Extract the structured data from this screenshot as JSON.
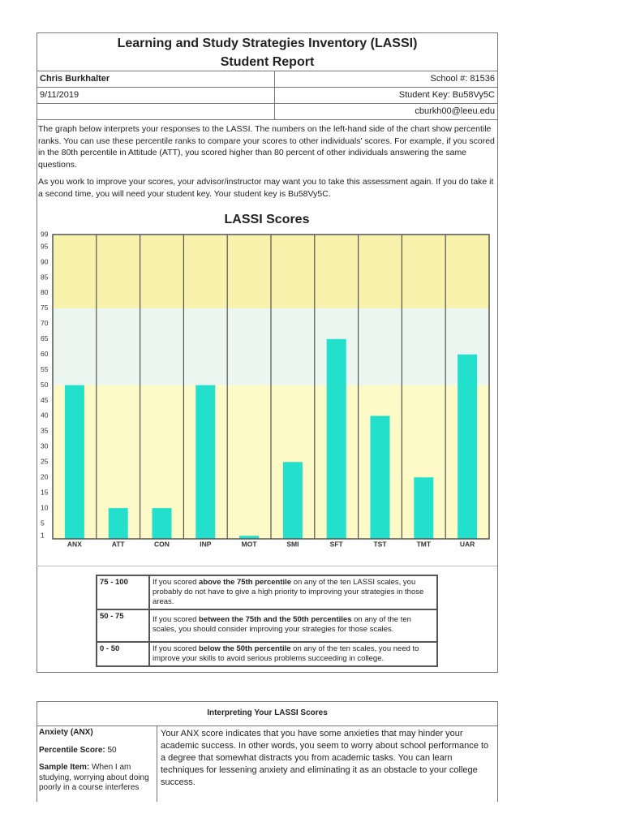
{
  "header": {
    "title": "Learning and Study Strategies Inventory (LASSI)",
    "subtitle": "Student Report"
  },
  "info": {
    "name": "Chris Burkhalter",
    "school": "School #: 81536",
    "date": "9/11/2019",
    "student_key": "Student Key: Bu58Vy5C",
    "email": "cburkh00@leeu.edu"
  },
  "paragraphs": [
    "The graph below interprets your responses to the LASSI. The numbers on the left-hand side of the chart show percentile ranks. You can use these percentile ranks to compare your scores to other individuals' scores. For example, if you scored in the 80th percentile in Attitude (ATT), you scored higher than 80 percent of other individuals answering the same questions.",
    "As you work to improve your scores, your advisor/instructor may want you to take this assessment again. If you do take it a second time, you will need your student key. Your student key is Bu58Vy5C."
  ],
  "chart_data": {
    "type": "bar",
    "title": "LASSI Scores",
    "categories": [
      "ANX",
      "ATT",
      "CON",
      "INP",
      "MOT",
      "SMI",
      "SFT",
      "TST",
      "TMT",
      "UAR"
    ],
    "values": [
      50,
      10,
      10,
      50,
      1,
      25,
      65,
      40,
      20,
      60
    ],
    "color": "#22e0cc",
    "ylim": [
      0,
      99
    ],
    "yticks": [
      1,
      5,
      10,
      15,
      20,
      25,
      30,
      35,
      40,
      45,
      50,
      55,
      60,
      65,
      70,
      75,
      80,
      85,
      90,
      95,
      99
    ],
    "bands": [
      {
        "from": 0,
        "to": 50,
        "color": "#fefac8"
      },
      {
        "from": 50,
        "to": 75,
        "color": "#eaf6ef"
      },
      {
        "from": 75,
        "to": 99,
        "color": "#f8f2ac"
      }
    ]
  },
  "legend_table": {
    "rows": [
      {
        "range": "75 - 100",
        "text": [
          "If you scored ",
          "above the 75th percentile",
          " on any of the ten LASSI scales, you probably do not have to give a high priority to improving your strategies in those areas."
        ]
      },
      {
        "range": "50 - 75",
        "text": [
          "If you scored ",
          "between the 75th and the 50th percentiles",
          " on any of the ten scales, you should consider improving your strategies for those scales."
        ]
      },
      {
        "range": "0 - 50",
        "text": [
          "If you scored ",
          "below the 50th percentile",
          " on any of the ten scales, you need to improve your skills to avoid serious problems succeeding in college."
        ]
      }
    ]
  },
  "interpretation": {
    "title": "Interpreting Your LASSI Scores",
    "rows": [
      {
        "scale": "Anxiety (ANX)",
        "score_label": "Percentile Score:",
        "score": 50,
        "sample_label": "Sample Item:",
        "sample": "When I am studying, worrying about doing poorly in a course interferes",
        "description": "Your ANX score indicates that you have some anxieties that may hinder your academic success. In other words, you seem to worry about school performance to a degree that somewhat distracts you from academic tasks. You can learn techniques for lessening anxiety and eliminating it as an obstacle to your college success."
      }
    ]
  }
}
